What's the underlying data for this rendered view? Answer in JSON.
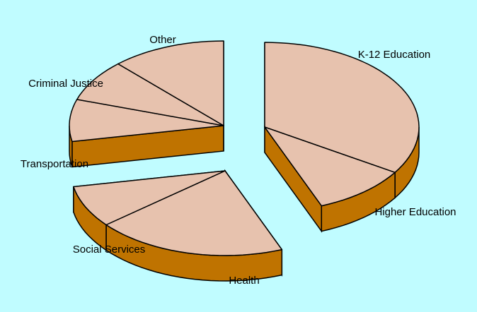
{
  "colors": {
    "background": "#c0fcff",
    "top_face": "#e7c2ae",
    "side_face": "#bf7300",
    "outline": "#000000"
  },
  "chart_data": {
    "type": "pie",
    "style": "3d-exploded",
    "title": "",
    "slices": [
      {
        "label": "K-12 Education",
        "value": 34,
        "group": "right"
      },
      {
        "label": "Higher Education",
        "value": 10,
        "group": "right"
      },
      {
        "label": "Health",
        "value": 20,
        "group": "bottom"
      },
      {
        "label": "Social Services",
        "value": 8,
        "group": "bottom"
      },
      {
        "label": "Transportation",
        "value": 8,
        "group": "left"
      },
      {
        "label": "Criminal Justice",
        "value": 8,
        "group": "left"
      },
      {
        "label": "Other",
        "value": 12,
        "group": "left"
      }
    ]
  }
}
